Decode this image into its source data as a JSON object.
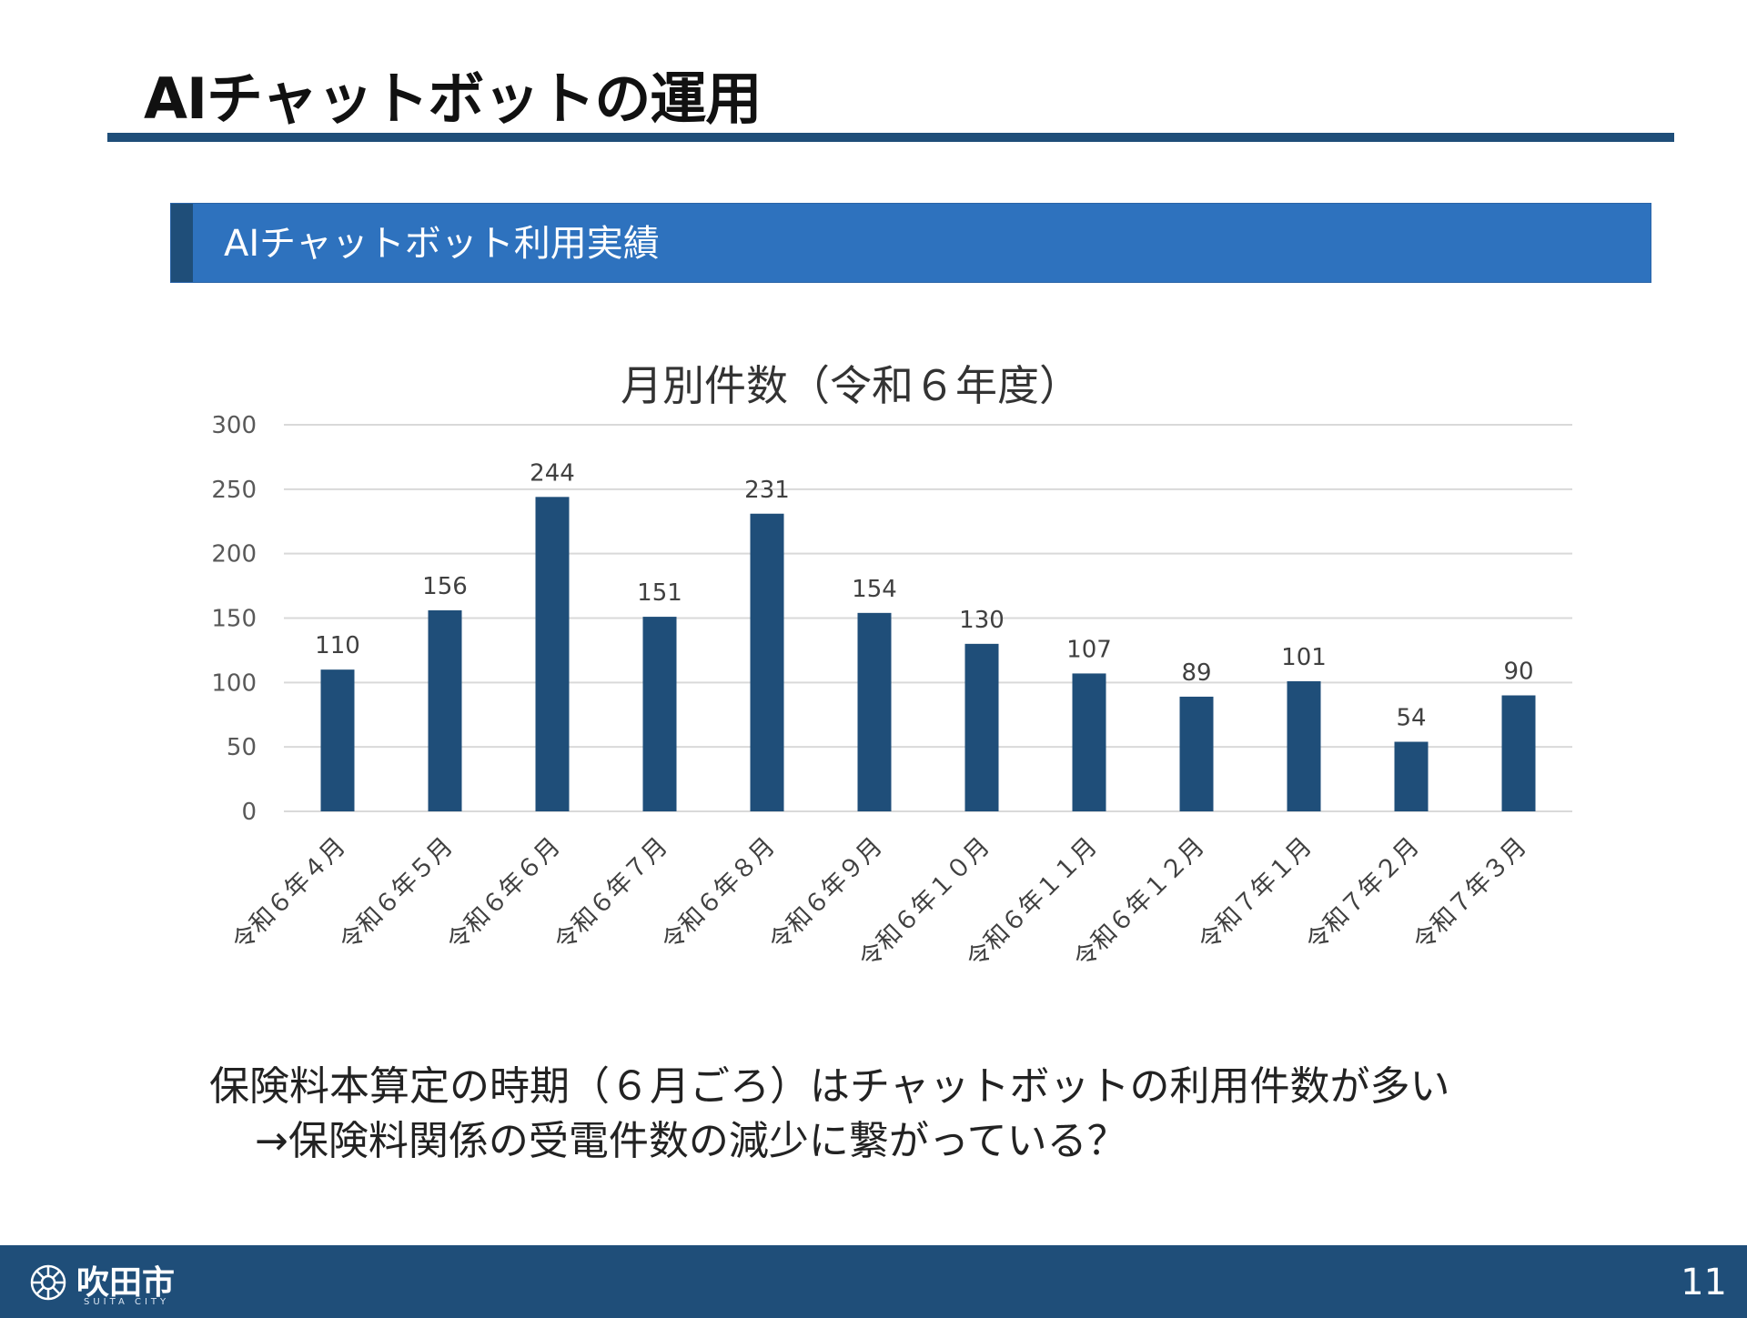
{
  "slide": {
    "title": "AIチャットボットの運用",
    "section_label": "AIチャットボット利用実績",
    "note_line1": "保険料本算定の時期（６月ごろ）はチャットボットの利用件数が多い",
    "note_line2": "→保険料関係の受電件数の減少に繋がっている？",
    "footer_city": "吹田市",
    "footer_city_en": "SUITA CITY",
    "page_number": "11"
  },
  "colors": {
    "bar": "#1f4e79",
    "title_rule": "#1f4e79",
    "section_bar": "#2e72be",
    "grid": "#d9d9d9"
  },
  "chart_data": {
    "type": "bar",
    "title": "月別件数（令和６年度）",
    "xlabel": "",
    "ylabel": "",
    "ylim": [
      0,
      300
    ],
    "yticks": [
      0,
      50,
      100,
      150,
      200,
      250,
      300
    ],
    "grid": true,
    "categories": [
      "令和６年４月",
      "令和６年５月",
      "令和６年６月",
      "令和６年７月",
      "令和６年８月",
      "令和６年９月",
      "令和６年１０月",
      "令和６年１１月",
      "令和６年１２月",
      "令和７年１月",
      "令和７年２月",
      "令和７年３月"
    ],
    "values": [
      110,
      156,
      244,
      151,
      231,
      154,
      130,
      107,
      89,
      101,
      54,
      90
    ]
  }
}
